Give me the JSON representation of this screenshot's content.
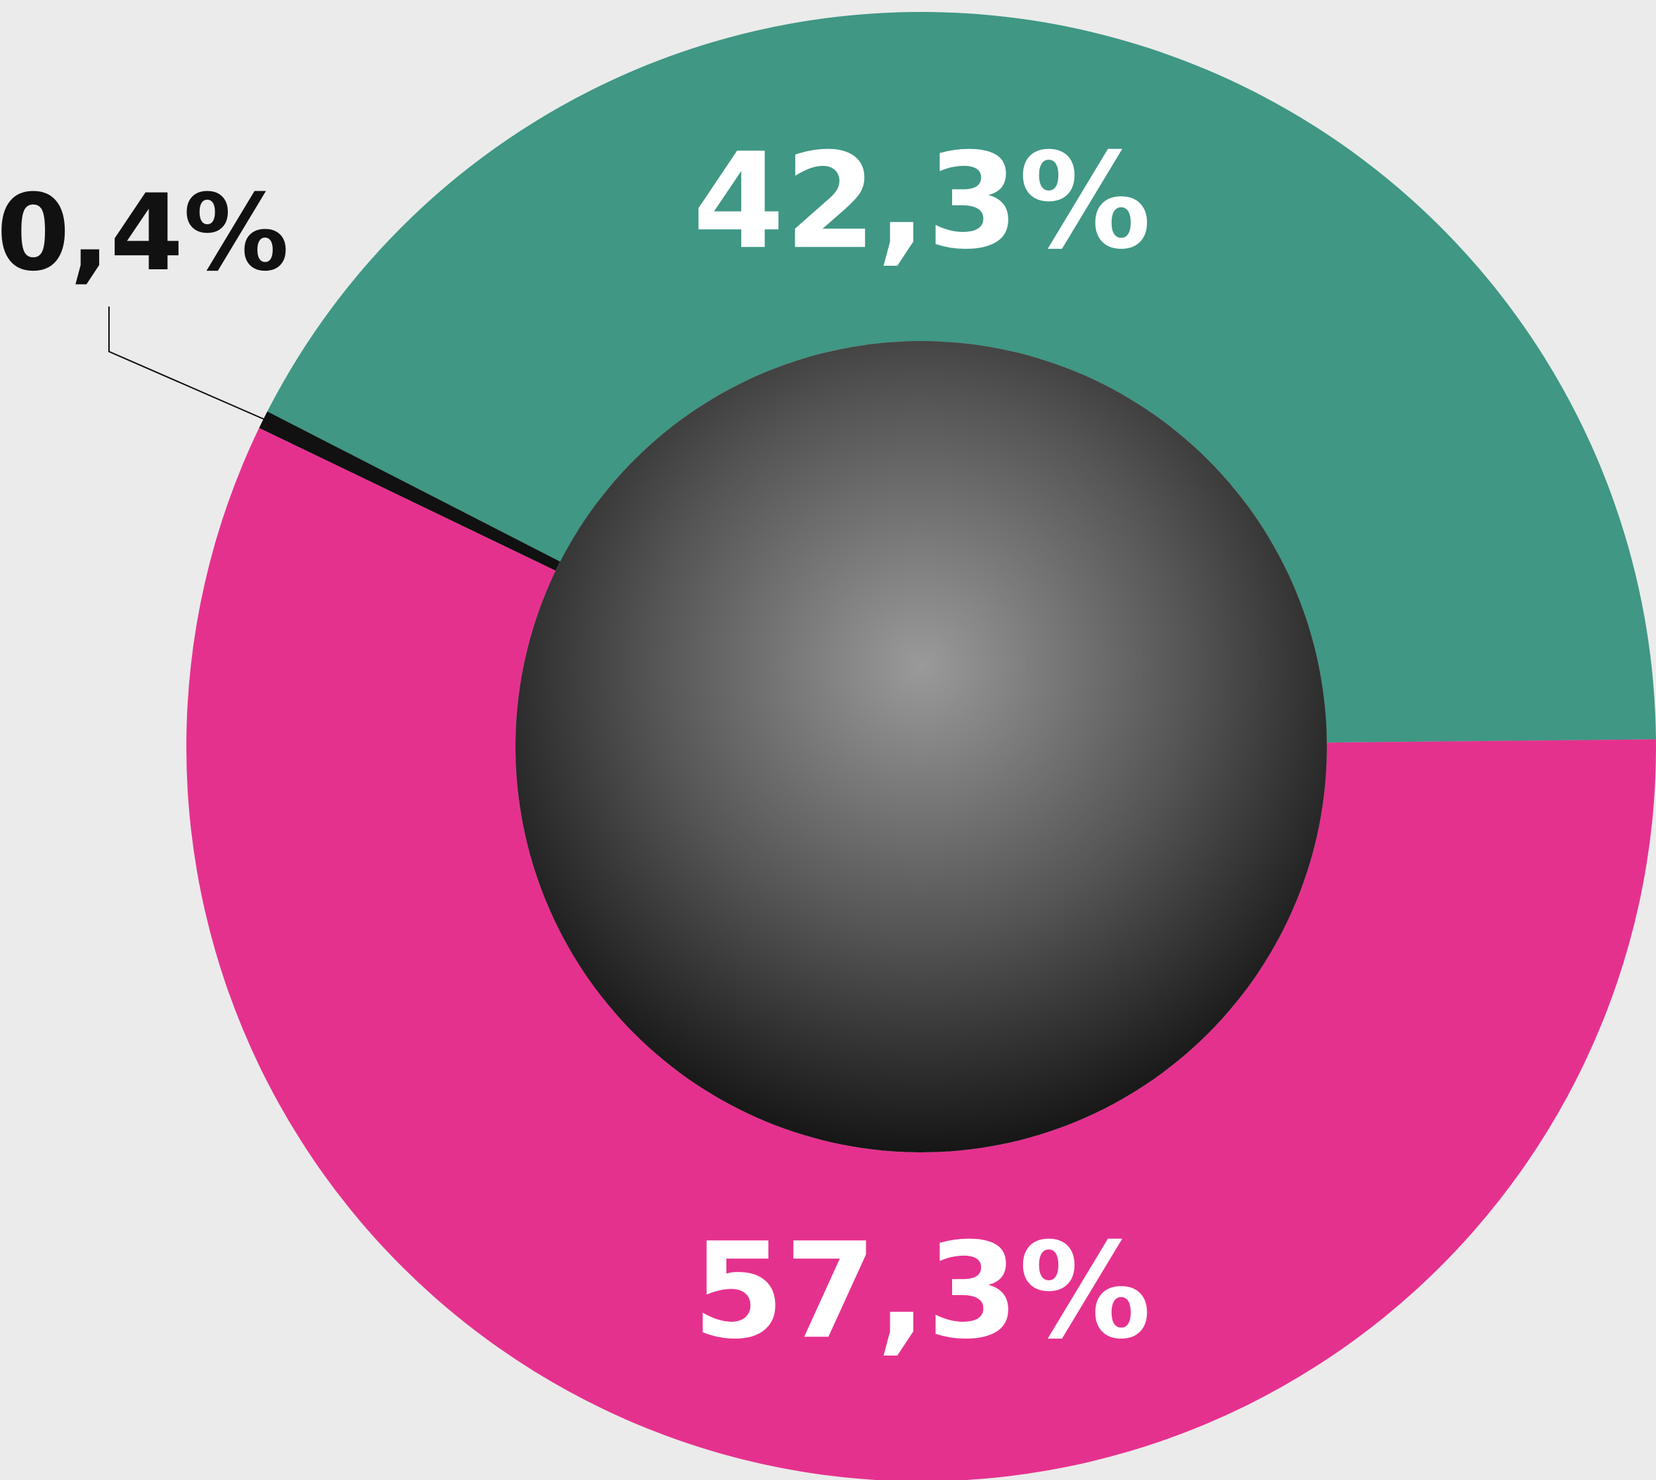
{
  "chart_data": {
    "type": "donut",
    "values": [
      42.3,
      0.4,
      57.3
    ],
    "value_labels": [
      "42,3%",
      "0,4%",
      "57,3%"
    ],
    "colors": [
      "#3f9784",
      "#111111",
      "#e5318e"
    ]
  }
}
